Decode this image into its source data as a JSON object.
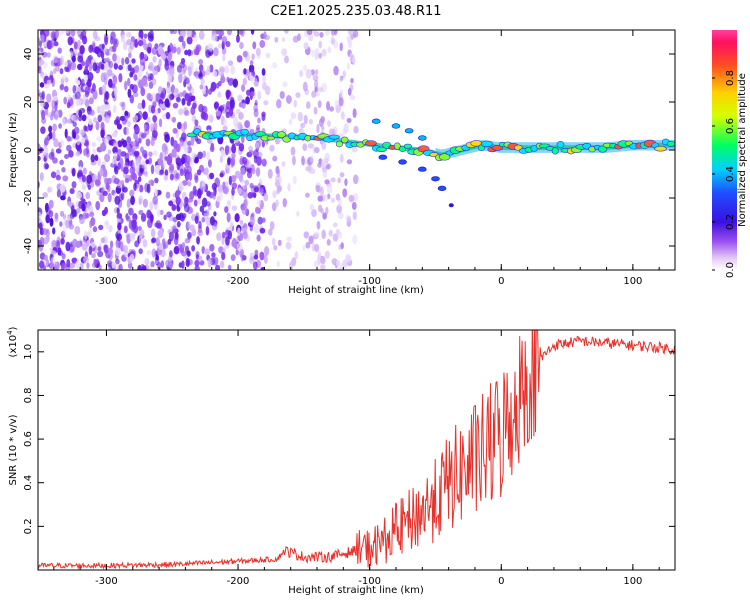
{
  "title": "C2E1.2025.235.03.48.R11",
  "chart_data": [
    {
      "type": "heatmap",
      "xlabel": "Height of straight line (km)",
      "ylabel": "Frequency (Hz)",
      "xlim": [
        -352,
        132
      ],
      "ylim": [
        -50,
        50
      ],
      "x_ticks": [
        "-300",
        "-200",
        "-100",
        "0",
        "100"
      ],
      "y_ticks": [
        "-40",
        "-20",
        "0",
        "20",
        "40"
      ],
      "colorbar": {
        "label": "Normalized spectral amplitude",
        "range": [
          0,
          1
        ],
        "ticks": [
          "0.0",
          "0.2",
          "0.4",
          "0.6",
          "0.8"
        ]
      },
      "dominant_frequency_track": {
        "x": [
          -235,
          -180,
          -140,
          -110,
          -80,
          -60,
          -45,
          -30,
          -15,
          0,
          20,
          50,
          80,
          100,
          132
        ],
        "y": [
          7,
          6,
          5,
          3,
          1,
          0,
          -2,
          0,
          2,
          1,
          1,
          1,
          1,
          2,
          2
        ]
      }
    },
    {
      "type": "line",
      "xlabel": "Height of straight line (km)",
      "ylabel": "SNR (10 * v/v)",
      "y_multiplier": "(x10",
      "y_multiplier_exp": "4",
      "ylim": [
        0,
        1.1
      ],
      "xlim": [
        -352,
        132
      ],
      "x_ticks": [
        "-300",
        "-200",
        "-100",
        "0",
        "100"
      ],
      "y_ticks": [
        "0.2",
        "0.4",
        "0.6",
        "0.8",
        "1.0"
      ],
      "series": [
        {
          "color": "#e8312b",
          "x": [
            -352,
            -300,
            -250,
            -200,
            -170,
            -165,
            -150,
            -130,
            -110,
            -100,
            -90,
            -80,
            -70,
            -60,
            -50,
            -40,
            -30,
            -20,
            -10,
            0,
            10,
            20,
            30,
            40,
            60,
            80,
            100,
            120,
            132
          ],
          "y": [
            0.02,
            0.02,
            0.025,
            0.04,
            0.05,
            0.09,
            0.06,
            0.06,
            0.09,
            0.1,
            0.13,
            0.18,
            0.22,
            0.27,
            0.32,
            0.4,
            0.45,
            0.5,
            0.55,
            0.62,
            0.75,
            0.88,
            0.97,
            1.03,
            1.05,
            1.04,
            1.03,
            1.02,
            1.01
          ]
        }
      ]
    }
  ]
}
